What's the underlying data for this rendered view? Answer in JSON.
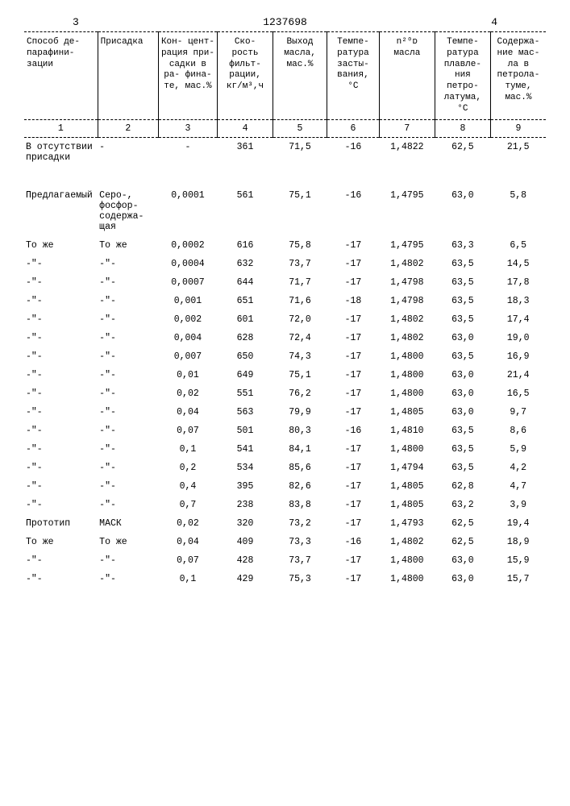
{
  "doc_number": "1237698",
  "page_left_num": "3",
  "page_right_num": "4",
  "headers": [
    "Способ де-\nпарафини-\nзации",
    "Присадка",
    "Кон-\nцент-\nрация\nпри-\nсадки\nв ра-\nфина-\nте,\nмас.%",
    "Ско-\nрость\nфильт-\nрации,\nкг/м³,ч",
    "Выход\nмасла,\nмас.%",
    "Темпе-\nратура\nзасты-\nвания,\n°С",
    "n²⁰ᴅ\nмасла",
    "Темпе-\nратура\nплавле-\nния\nпетро-\nлатума,\n°С",
    "Содержа-\nние мас-\nла в\nпетрола-\nтуме,\nмас.%"
  ],
  "col_nums": [
    "1",
    "2",
    "3",
    "4",
    "5",
    "6",
    "7",
    "8",
    "9"
  ],
  "rows": [
    {
      "c1": "В отсутствии присадки",
      "c2": "-",
      "c3": "-",
      "c4": "361",
      "c5": "71,5",
      "c6": "-16",
      "c7": "1,4822",
      "c8": "62,5",
      "c9": "21,5",
      "tall": true
    },
    {
      "c1": "Предлагаемый",
      "c2": "Серо-, фосфор-содержа-щая",
      "c3": "0,0001",
      "c4": "561",
      "c5": "75,1",
      "c6": "-16",
      "c7": "1,4795",
      "c8": "63,0",
      "c9": "5,8",
      "tall": true
    },
    {
      "c1": "То же",
      "c2": "То же",
      "c3": "0,0002",
      "c4": "616",
      "c5": "75,8",
      "c6": "-17",
      "c7": "1,4795",
      "c8": "63,3",
      "c9": "6,5"
    },
    {
      "c1": "-\"-",
      "c2": "-\"-",
      "c3": "0,0004",
      "c4": "632",
      "c5": "73,7",
      "c6": "-17",
      "c7": "1,4802",
      "c8": "63,5",
      "c9": "14,5"
    },
    {
      "c1": "-\"-",
      "c2": "-\"-",
      "c3": "0,0007",
      "c4": "644",
      "c5": "71,7",
      "c6": "-17",
      "c7": "1,4798",
      "c8": "63,5",
      "c9": "17,8"
    },
    {
      "c1": "-\"-",
      "c2": "-\"-",
      "c3": "0,001",
      "c4": "651",
      "c5": "71,6",
      "c6": "-18",
      "c7": "1,4798",
      "c8": "63,5",
      "c9": "18,3"
    },
    {
      "c1": "-\"-",
      "c2": "-\"-",
      "c3": "0,002",
      "c4": "601",
      "c5": "72,0",
      "c6": "-17",
      "c7": "1,4802",
      "c8": "63,5",
      "c9": "17,4"
    },
    {
      "c1": "-\"-",
      "c2": "-\"-",
      "c3": "0,004",
      "c4": "628",
      "c5": "72,4",
      "c6": "-17",
      "c7": "1,4802",
      "c8": "63,0",
      "c9": "19,0"
    },
    {
      "c1": "-\"-",
      "c2": "-\"-",
      "c3": "0,007",
      "c4": "650",
      "c5": "74,3",
      "c6": "-17",
      "c7": "1,4800",
      "c8": "63,5",
      "c9": "16,9"
    },
    {
      "c1": "-\"-",
      "c2": "-\"-",
      "c3": "0,01",
      "c4": "649",
      "c5": "75,1",
      "c6": "-17",
      "c7": "1,4800",
      "c8": "63,0",
      "c9": "21,4"
    },
    {
      "c1": "-\"-",
      "c2": "-\"-",
      "c3": "0,02",
      "c4": "551",
      "c5": "76,2",
      "c6": "-17",
      "c7": "1,4800",
      "c8": "63,0",
      "c9": "16,5"
    },
    {
      "c1": "-\"-",
      "c2": "-\"-",
      "c3": "0,04",
      "c4": "563",
      "c5": "79,9",
      "c6": "-17",
      "c7": "1,4805",
      "c8": "63,0",
      "c9": "9,7"
    },
    {
      "c1": "-\"-",
      "c2": "-\"-",
      "c3": "0,07",
      "c4": "501",
      "c5": "80,3",
      "c6": "-16",
      "c7": "1,4810",
      "c8": "63,5",
      "c9": "8,6"
    },
    {
      "c1": "-\"-",
      "c2": "-\"-",
      "c3": "0,1",
      "c4": "541",
      "c5": "84,1",
      "c6": "-17",
      "c7": "1,4800",
      "c8": "63,5",
      "c9": "5,9"
    },
    {
      "c1": "-\"-",
      "c2": "-\"-",
      "c3": "0,2",
      "c4": "534",
      "c5": "85,6",
      "c6": "-17",
      "c7": "1,4794",
      "c8": "63,5",
      "c9": "4,2"
    },
    {
      "c1": "-\"-",
      "c2": "-\"-",
      "c3": "0,4",
      "c4": "395",
      "c5": "82,6",
      "c6": "-17",
      "c7": "1,4805",
      "c8": "62,8",
      "c9": "4,7"
    },
    {
      "c1": "-\"-",
      "c2": "-\"-",
      "c3": "0,7",
      "c4": "238",
      "c5": "83,8",
      "c6": "-17",
      "c7": "1,4805",
      "c8": "63,2",
      "c9": "3,9"
    },
    {
      "c1": "Прототип",
      "c2": "МАСК",
      "c3": "0,02",
      "c4": "320",
      "c5": "73,2",
      "c6": "-17",
      "c7": "1,4793",
      "c8": "62,5",
      "c9": "19,4"
    },
    {
      "c1": "То же",
      "c2": "То же",
      "c3": "0,04",
      "c4": "409",
      "c5": "73,3",
      "c6": "-16",
      "c7": "1,4802",
      "c8": "62,5",
      "c9": "18,9"
    },
    {
      "c1": "-\"-",
      "c2": "-\"-",
      "c3": "0,07",
      "c4": "428",
      "c5": "73,7",
      "c6": "-17",
      "c7": "1,4800",
      "c8": "63,0",
      "c9": "15,9"
    },
    {
      "c1": "-\"-",
      "c2": "-\"-",
      "c3": "0,1",
      "c4": "429",
      "c5": "75,3",
      "c6": "-17",
      "c7": "1,4800",
      "c8": "63,0",
      "c9": "15,7"
    }
  ]
}
